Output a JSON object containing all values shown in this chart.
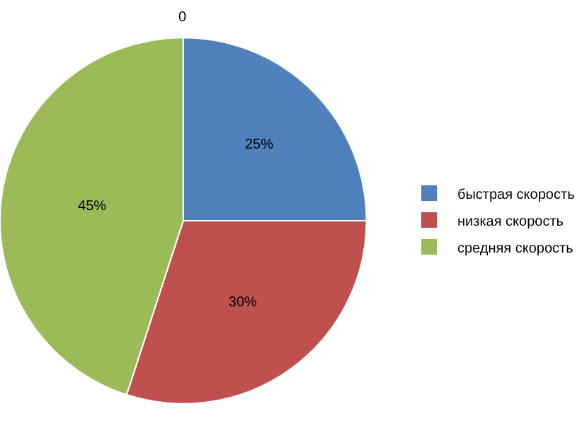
{
  "chart_data": {
    "type": "pie",
    "categories": [
      "быстрая скорость",
      "низкая скорость",
      "средняя скорость"
    ],
    "values": [
      25,
      30,
      45
    ],
    "colors": [
      "#4f81bd",
      "#c0504d",
      "#9bbb59"
    ],
    "value_labels": [
      "25%",
      "30%",
      "45%"
    ],
    "annotations": [
      "0"
    ],
    "legend": "right"
  }
}
